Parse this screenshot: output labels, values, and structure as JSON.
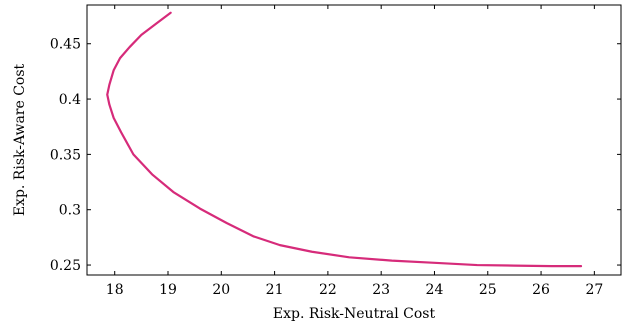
{
  "chart_data": {
    "type": "line",
    "title": "",
    "xlabel": "Exp. Risk-Neutral Cost",
    "ylabel": "Exp. Risk-Aware Cost",
    "xlim": [
      17.48,
      27.5
    ],
    "ylim": [
      0.241,
      0.485
    ],
    "xticks": [
      18,
      19,
      20,
      21,
      22,
      23,
      24,
      25,
      26,
      27
    ],
    "yticks": [
      0.25,
      0.3,
      0.35,
      0.4,
      0.45
    ],
    "ytick_labels": [
      "0.25",
      "0.3",
      "0.35",
      "0.4",
      "0.45"
    ],
    "grid": false,
    "legend": "none",
    "series": [
      {
        "color": "#d62b7a",
        "x": [
          19.05,
          18.8,
          18.5,
          18.28,
          18.1,
          17.98,
          17.9,
          17.86,
          17.9,
          17.98,
          18.12,
          18.35,
          18.7,
          19.1,
          19.6,
          20.1,
          20.6,
          21.1,
          21.7,
          22.4,
          23.2,
          24.0,
          24.8,
          25.5,
          26.2,
          26.75
        ],
        "y": [
          0.478,
          0.469,
          0.458,
          0.447,
          0.437,
          0.426,
          0.413,
          0.404,
          0.395,
          0.383,
          0.37,
          0.35,
          0.332,
          0.316,
          0.301,
          0.288,
          0.276,
          0.268,
          0.262,
          0.257,
          0.254,
          0.252,
          0.25,
          0.2495,
          0.249,
          0.249
        ]
      }
    ]
  }
}
